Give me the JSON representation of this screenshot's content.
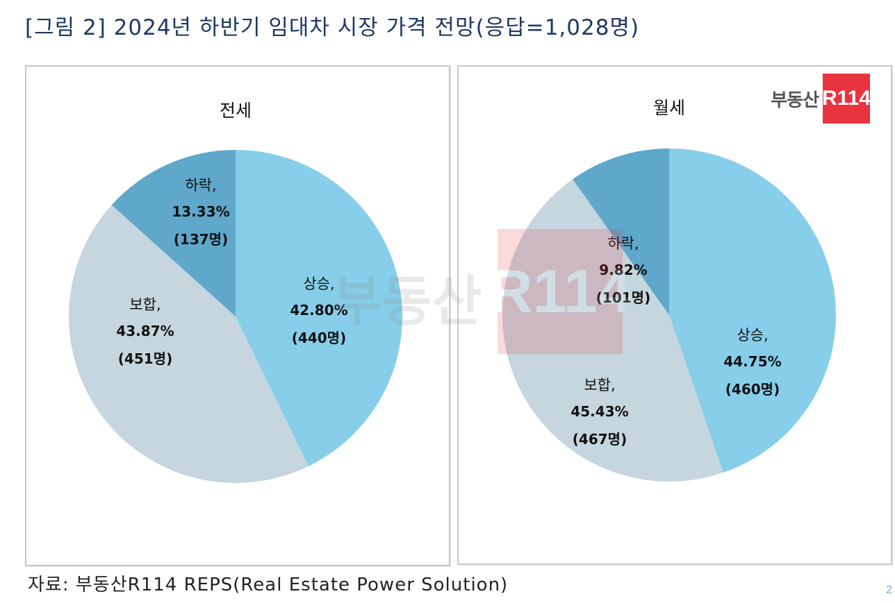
{
  "figure_title": "[그림 2] 2024년 하반기 임대차 시장 가격 전망(응답=1,028명)",
  "source": "자료: 부동산R114 REPS(Real Estate Power Solution)",
  "logo": {
    "text": "부동산",
    "mark": "R114"
  },
  "page_number": "2",
  "colors": {
    "up": "#87ceea",
    "flat": "#c6d6de",
    "down": "#5fa7cb",
    "title": "#1f3864",
    "logo_red": "#e8343f"
  },
  "chart_data": [
    {
      "type": "pie",
      "title": "전세",
      "slices": [
        {
          "label": "상승,",
          "percent": 42.8,
          "percent_text": "42.80%",
          "count_text": "(440명)",
          "color": "#87ceea"
        },
        {
          "label": "보합,",
          "percent": 43.87,
          "percent_text": "43.87%",
          "count_text": "(451명)",
          "color": "#c6d6de"
        },
        {
          "label": "하락,",
          "percent": 13.33,
          "percent_text": "13.33%",
          "count_text": "(137명)",
          "color": "#5fa7cb"
        }
      ]
    },
    {
      "type": "pie",
      "title": "월세",
      "slices": [
        {
          "label": "상승,",
          "percent": 44.75,
          "percent_text": "44.75%",
          "count_text": "(460명)",
          "color": "#87ceea"
        },
        {
          "label": "보합,",
          "percent": 45.43,
          "percent_text": "45.43%",
          "count_text": "(467명)",
          "color": "#c6d6de"
        },
        {
          "label": "하락,",
          "percent": 9.82,
          "percent_text": "9.82%",
          "count_text": "(101명)",
          "color": "#5fa7cb"
        }
      ]
    }
  ]
}
